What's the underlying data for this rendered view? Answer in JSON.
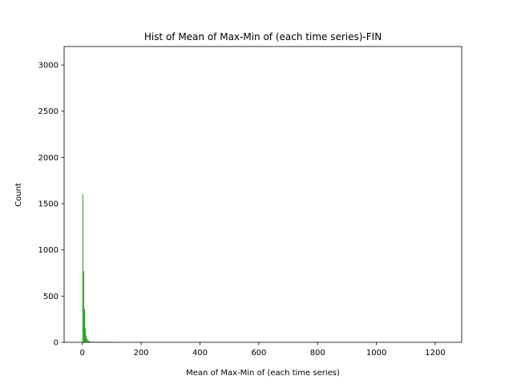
{
  "chart_data": {
    "type": "bar",
    "title": "Hist of Mean of Max-Min of (each time series)-FIN",
    "xlabel": "Mean of Max-Min of (each time series)",
    "ylabel": "Count",
    "xlim": [
      -62,
      1290
    ],
    "ylim": [
      0,
      3200
    ],
    "xticks": [
      0,
      200,
      400,
      600,
      800,
      1000,
      1200
    ],
    "yticks": [
      0,
      500,
      1000,
      1500,
      2000,
      2500,
      3000
    ],
    "grid": false,
    "series": [
      {
        "color": "#2ca02c",
        "bins": [
          {
            "x0": 0,
            "x1": 3,
            "count": 1600
          },
          {
            "x0": 3,
            "x1": 6,
            "count": 770
          },
          {
            "x0": 6,
            "x1": 9,
            "count": 360
          },
          {
            "x0": 9,
            "x1": 12,
            "count": 150
          },
          {
            "x0": 12,
            "x1": 15,
            "count": 70
          },
          {
            "x0": 15,
            "x1": 18,
            "count": 40
          },
          {
            "x0": 18,
            "x1": 21,
            "count": 22
          },
          {
            "x0": 21,
            "x1": 24,
            "count": 14
          },
          {
            "x0": 24,
            "x1": 27,
            "count": 9
          },
          {
            "x0": 27,
            "x1": 30,
            "count": 6
          }
        ]
      },
      {
        "color": "#1f77b4",
        "bins": [
          {
            "x0": 30,
            "x1": 40,
            "count": 6
          },
          {
            "x0": 40,
            "x1": 50,
            "count": 4
          },
          {
            "x0": 50,
            "x1": 60,
            "count": 3
          },
          {
            "x0": 60,
            "x1": 70,
            "count": 3
          },
          {
            "x0": 70,
            "x1": 80,
            "count": 2
          },
          {
            "x0": 80,
            "x1": 90,
            "count": 3
          },
          {
            "x0": 90,
            "x1": 100,
            "count": 2
          },
          {
            "x0": 100,
            "x1": 110,
            "count": 1
          }
        ]
      }
    ]
  }
}
